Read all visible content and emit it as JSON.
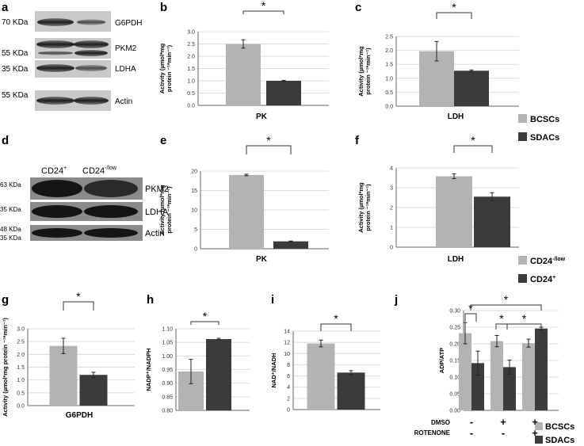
{
  "panels": {
    "a": "a",
    "b": "b",
    "c": "c",
    "d": "d",
    "e": "e",
    "f": "f",
    "g": "g",
    "h": "h",
    "i": "i",
    "j": "j"
  },
  "colors": {
    "light": "#b3b3b3",
    "dark": "#3b3b3b",
    "grid": "#dcdcdc",
    "axis": "#666666"
  },
  "blot_a": {
    "mw_labels": [
      "70 KDa",
      "55 KDa",
      "35 KDa",
      "55 KDa"
    ],
    "proteins": [
      "G6PDH",
      "PKM2",
      "LDHA",
      "Actin"
    ]
  },
  "blot_d": {
    "column_labels": [
      "CD24",
      "CD24"
    ],
    "column_sups": [
      "+",
      "-/low"
    ],
    "mw_labels": [
      "63 KDa",
      "35 KDa",
      "48 KDa",
      "35 KDa"
    ],
    "proteins": [
      "PKM2",
      "LDHA",
      "Actin"
    ]
  },
  "legend_top": [
    {
      "name": "BCSCs",
      "color": "#b3b3b3"
    },
    {
      "name": "SDACs",
      "color": "#3b3b3b"
    }
  ],
  "legend_mid": [
    {
      "name": "CD24",
      "sup": "-/low",
      "color": "#b3b3b3"
    },
    {
      "name": "CD24",
      "sup": "+",
      "color": "#3b3b3b"
    }
  ],
  "legend_bottom": [
    {
      "name": "BCSCs",
      "color": "#b3b3b3"
    },
    {
      "name": "SDACs",
      "color": "#3b3b3b"
    }
  ],
  "significance": "*",
  "chart_data": [
    {
      "panel": "b",
      "type": "bar",
      "xlabel": "PK",
      "ylabel_lines": [
        "Activity (µmol*mg",
        "protein ⁻¹*min⁻¹)"
      ],
      "ylim": [
        0,
        3.0
      ],
      "ticks": [
        0.0,
        0.5,
        1.0,
        1.5,
        2.0,
        2.5,
        3.0
      ],
      "tick_decimals": 1,
      "bars": [
        {
          "series": "BCSCs",
          "value": 2.5,
          "error": 0.17
        },
        {
          "series": "SDACs",
          "value": 1.0,
          "error": 0.02
        }
      ]
    },
    {
      "panel": "c",
      "type": "bar",
      "xlabel": "LDH",
      "ylabel_lines": [
        "Activity (µmol*mg",
        "protein ⁻¹*min⁻¹)"
      ],
      "ylim": [
        0,
        2.5
      ],
      "ticks": [
        0.0,
        0.5,
        1.0,
        1.5,
        2.0,
        2.5
      ],
      "tick_decimals": 1,
      "bars": [
        {
          "series": "BCSCs",
          "value": 1.97,
          "error": 0.35
        },
        {
          "series": "SDACs",
          "value": 1.27,
          "error": 0.03
        }
      ]
    },
    {
      "panel": "e",
      "type": "bar",
      "xlabel": "PK",
      "ylabel_lines": [
        "Activity (µmol*mg",
        "protein ⁻¹*min⁻¹)"
      ],
      "ylim": [
        0,
        20
      ],
      "ticks": [
        0,
        5,
        10,
        15,
        20
      ],
      "tick_decimals": 0,
      "bars": [
        {
          "series": "CD24-/low",
          "value": 19.0,
          "error": 0.2
        },
        {
          "series": "CD24+",
          "value": 1.9,
          "error": 0.1
        }
      ]
    },
    {
      "panel": "f",
      "type": "bar",
      "xlabel": "LDH",
      "ylabel_lines": [
        "Activity (µmol*mg",
        "protein ⁻¹*min⁻¹)"
      ],
      "ylim": [
        0,
        4
      ],
      "ticks": [
        0,
        1,
        2,
        3,
        4
      ],
      "tick_decimals": 0,
      "bars": [
        {
          "series": "CD24-/low",
          "value": 3.58,
          "error": 0.12
        },
        {
          "series": "CD24+",
          "value": 2.55,
          "error": 0.2
        }
      ]
    },
    {
      "panel": "g",
      "type": "bar",
      "xlabel": "G6PDH",
      "ylabel_lines": [
        "Activity (µmol*mg protein ⁻¹*min⁻¹)"
      ],
      "ylim": [
        0,
        3.0
      ],
      "ticks": [
        0.0,
        0.5,
        1.0,
        1.5,
        2.0,
        2.5,
        3.0
      ],
      "tick_decimals": 1,
      "bars": [
        {
          "series": "BCSCs",
          "value": 2.33,
          "error": 0.3
        },
        {
          "series": "SDACs",
          "value": 1.2,
          "error": 0.1
        }
      ]
    },
    {
      "panel": "h",
      "type": "bar",
      "xlabel": "",
      "ylabel_lines": [
        "NADP⁺/NADPH"
      ],
      "ylim": [
        0.8,
        1.1
      ],
      "ticks": [
        0.8,
        0.85,
        0.9,
        0.95,
        1.0,
        1.05,
        1.1
      ],
      "tick_decimals": 2,
      "bars": [
        {
          "series": "BCSCs",
          "value": 0.943,
          "error": 0.045
        },
        {
          "series": "SDACs",
          "value": 1.062,
          "error": 0.003
        }
      ]
    },
    {
      "panel": "i",
      "type": "bar",
      "xlabel": "",
      "ylabel_lines": [
        "NAD⁺/NADH"
      ],
      "ylim": [
        0,
        14
      ],
      "ticks": [
        0,
        2,
        4,
        6,
        8,
        10,
        12,
        14
      ],
      "tick_decimals": 0,
      "bars": [
        {
          "series": "BCSCs",
          "value": 11.8,
          "error": 0.6
        },
        {
          "series": "SDACs",
          "value": 6.6,
          "error": 0.35
        }
      ]
    },
    {
      "panel": "j",
      "type": "bar",
      "xlabel": "",
      "ylabel_lines": [
        "ADP/ATP"
      ],
      "ylim": [
        0,
        0.3
      ],
      "ticks": [
        0.0,
        0.05,
        0.1,
        0.15,
        0.2,
        0.25,
        0.3
      ],
      "tick_decimals": 2,
      "row_labels": [
        "DMSO",
        "ROTENONE"
      ],
      "groups": [
        {
          "dmso": "-",
          "rotenone": "-"
        },
        {
          "dmso": "+",
          "rotenone": "-"
        },
        {
          "dmso": "+",
          "rotenone": "+"
        }
      ],
      "series": [
        {
          "name": "BCSCs",
          "values": [
            0.232,
            0.208,
            0.202
          ],
          "errors": [
            0.032,
            0.017,
            0.012
          ]
        },
        {
          "name": "SDACs",
          "values": [
            0.142,
            0.13,
            0.246
          ],
          "errors": [
            0.036,
            0.021,
            0.004
          ]
        }
      ]
    }
  ]
}
